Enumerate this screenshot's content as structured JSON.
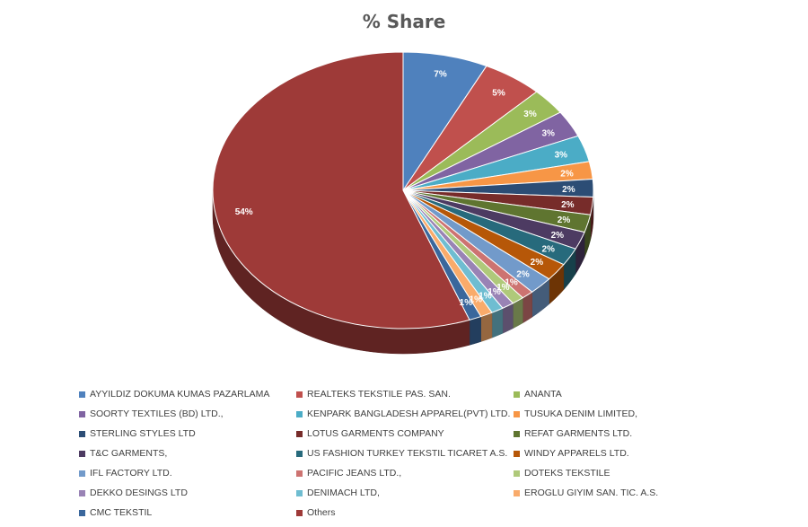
{
  "chart_data": {
    "type": "pie",
    "title": "% Share",
    "labels": [
      "AYYILDIZ DOKUMA KUMAS PAZARLAMA",
      "REALTEKS TEKSTILE PAS. SAN.",
      "ANANTA",
      "SOORTY TEXTILES (BD) LTD.,",
      "KENPARK BANGLADESH APPAREL(PVT) LTD.",
      "TUSUKA DENIM LIMITED,",
      "STERLING STYLES LTD",
      "LOTUS GARMENTS COMPANY",
      "REFAT GARMENTS LTD.",
      "T&C GARMENTS,",
      "US FASHION TURKEY TEKSTIL TICARET A.S.",
      "WINDY APPARELS LTD.",
      "IFL FACTORY LTD.",
      "PACIFIC JEANS LTD.,",
      "DOTEKS TEKSTILE",
      "DEKKO DESINGS LTD",
      "DENIMACH LTD,",
      "EROGLU GIYIM SAN. TIC. A.S.",
      "CMC TEKSTIL",
      "Others"
    ],
    "values": [
      7,
      5,
      3,
      3,
      3,
      2,
      2,
      2,
      2,
      2,
      2,
      2,
      2,
      1,
      1,
      1,
      1,
      1,
      1,
      54
    ],
    "value_labels": [
      "7%",
      "5%",
      "3%",
      "3%",
      "3%",
      "2%",
      "2%",
      "2%",
      "2%",
      "2%",
      "2%",
      "2%",
      "2%",
      "1%",
      "1%",
      "1%",
      "1%",
      "1%",
      "1%",
      "54%"
    ],
    "colors": [
      "#4F81BD",
      "#C0504D",
      "#9BBB59",
      "#8064A2",
      "#4BACC6",
      "#F79646",
      "#2C4D75",
      "#772C2A",
      "#5F7530",
      "#4D3B62",
      "#276A7C",
      "#B65708",
      "#729ACA",
      "#CD7371",
      "#AFC97A",
      "#9983B5",
      "#6FBDD1",
      "#F9AB6B",
      "#3A679C",
      "#9E3A38"
    ],
    "legend_position": "bottom",
    "style": "3d"
  }
}
